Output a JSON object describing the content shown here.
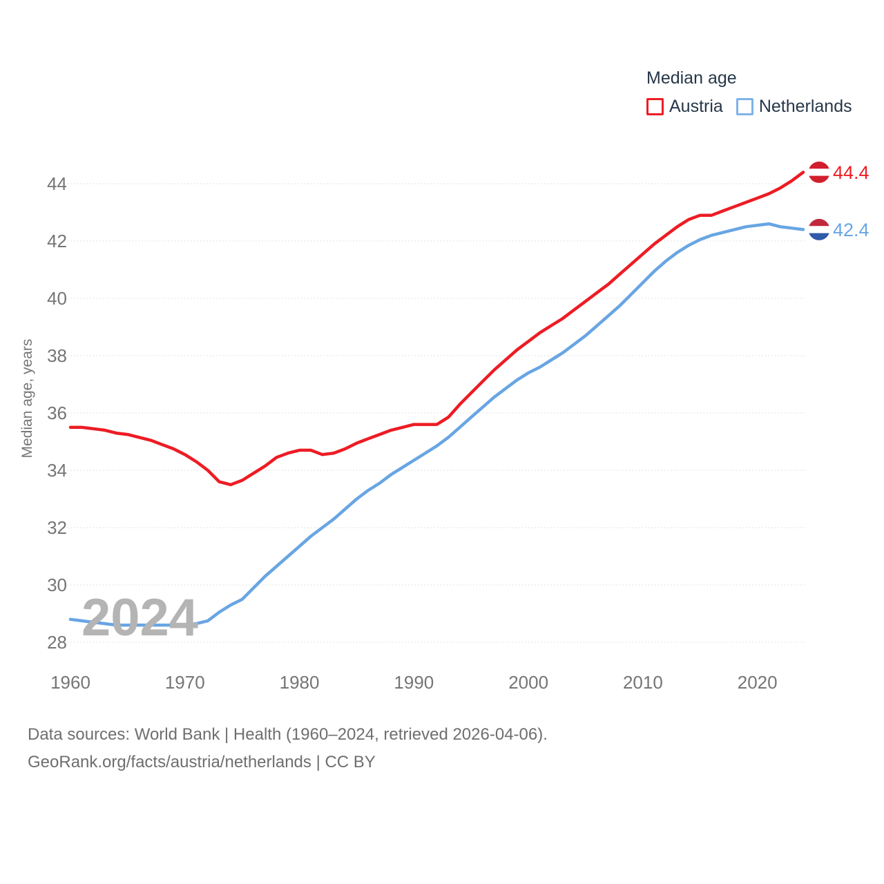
{
  "legend": {
    "title": "Median age",
    "items": [
      {
        "label": "Austria",
        "color": "#ed1c24"
      },
      {
        "label": "Netherlands",
        "color": "#7fb2ea"
      }
    ]
  },
  "chart_data": {
    "type": "line",
    "title": "Median age",
    "ylabel": "Median age, years",
    "xlabel": "",
    "grid": true,
    "legend_position": "top-right",
    "xlim": [
      1960,
      2024
    ],
    "ylim": [
      27.7,
      45.0
    ],
    "x_ticks": [
      1960,
      1970,
      1980,
      1990,
      2000,
      2010,
      2020
    ],
    "y_ticks": [
      28,
      30,
      32,
      34,
      36,
      38,
      40,
      42,
      44
    ],
    "years": [
      1960,
      1961,
      1962,
      1963,
      1964,
      1965,
      1966,
      1967,
      1968,
      1969,
      1970,
      1971,
      1972,
      1973,
      1974,
      1975,
      1976,
      1977,
      1978,
      1979,
      1980,
      1981,
      1982,
      1983,
      1984,
      1985,
      1986,
      1987,
      1988,
      1989,
      1990,
      1991,
      1992,
      1993,
      1994,
      1995,
      1996,
      1997,
      1998,
      1999,
      2000,
      2001,
      2002,
      2003,
      2004,
      2005,
      2006,
      2007,
      2008,
      2009,
      2010,
      2011,
      2012,
      2013,
      2014,
      2015,
      2016,
      2017,
      2018,
      2019,
      2020,
      2021,
      2022,
      2023,
      2024
    ],
    "series": [
      {
        "name": "Austria",
        "color": "#ed1c24",
        "end_label": "44.4",
        "flag_stripes": [
          "#d21f2d",
          "#ffffff",
          "#d21f2d"
        ],
        "values": [
          35.5,
          35.5,
          35.45,
          35.4,
          35.3,
          35.25,
          35.15,
          35.05,
          34.9,
          34.75,
          34.55,
          34.3,
          34.0,
          33.6,
          33.5,
          33.65,
          33.9,
          34.15,
          34.45,
          34.6,
          34.7,
          34.7,
          34.55,
          34.6,
          34.75,
          34.95,
          35.1,
          35.25,
          35.4,
          35.5,
          35.6,
          35.6,
          35.6,
          35.85,
          36.3,
          36.7,
          37.1,
          37.5,
          37.85,
          38.2,
          38.5,
          38.8,
          39.05,
          39.3,
          39.6,
          39.9,
          40.2,
          40.5,
          40.85,
          41.2,
          41.55,
          41.9,
          42.2,
          42.5,
          42.75,
          42.9,
          42.9,
          43.05,
          43.2,
          43.35,
          43.5,
          43.65,
          43.85,
          44.1,
          44.4
        ]
      },
      {
        "name": "Netherlands",
        "color": "#68a5e3",
        "end_label": "42.4",
        "flag_stripes": [
          "#c0283b",
          "#ffffff",
          "#2e5aa8"
        ],
        "values": [
          28.8,
          28.75,
          28.7,
          28.65,
          28.6,
          28.6,
          28.6,
          28.6,
          28.6,
          28.6,
          28.6,
          28.65,
          28.75,
          29.05,
          29.3,
          29.5,
          29.9,
          30.3,
          30.65,
          31.0,
          31.35,
          31.7,
          32.0,
          32.3,
          32.65,
          33.0,
          33.3,
          33.55,
          33.85,
          34.1,
          34.35,
          34.6,
          34.85,
          35.15,
          35.5,
          35.85,
          36.2,
          36.55,
          36.85,
          37.15,
          37.4,
          37.6,
          37.85,
          38.1,
          38.4,
          38.7,
          39.05,
          39.4,
          39.75,
          40.15,
          40.55,
          40.95,
          41.3,
          41.6,
          41.85,
          42.05,
          42.2,
          42.3,
          42.4,
          42.5,
          42.55,
          42.6,
          42.5,
          42.45,
          42.4
        ]
      }
    ],
    "tick_color": "#757575",
    "grid_color": "#d8d8d8"
  },
  "watermark": "2024",
  "footer": {
    "line1": "Data sources: World Bank | Health (1960–2024, retrieved 2026-04-06).",
    "line2": "GeoRank.org/facts/austria/netherlands | CC BY"
  }
}
